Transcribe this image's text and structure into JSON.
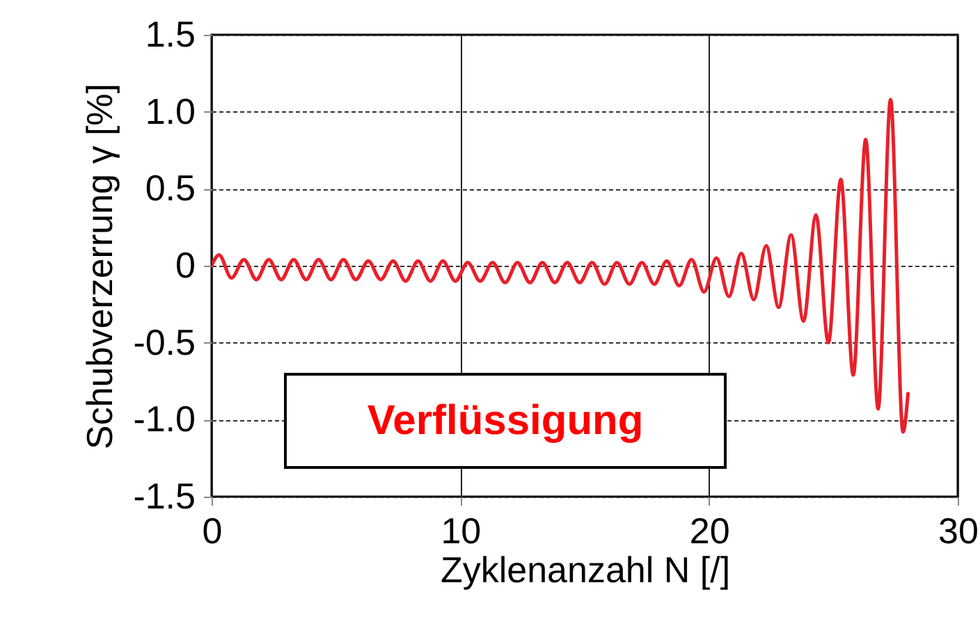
{
  "chart_data": {
    "type": "line",
    "xlabel": "Zyklenanzahl N [/]",
    "ylabel": "Schubverzerrung γ [%]",
    "annotations": [
      "Verflüssigung"
    ],
    "x": [
      0,
      0.3,
      0.8,
      1.3,
      1.8,
      2.3,
      2.8,
      3.3,
      3.8,
      4.3,
      4.8,
      5.3,
      5.8,
      6.3,
      6.8,
      7.3,
      7.8,
      8.3,
      8.8,
      9.3,
      9.8,
      10.3,
      10.8,
      11.3,
      11.8,
      12.3,
      12.8,
      13.3,
      13.8,
      14.3,
      14.8,
      15.3,
      15.8,
      16.3,
      16.8,
      17.3,
      17.8,
      18.3,
      18.8,
      19.3,
      19.8,
      20.3,
      20.8,
      21.3,
      21.8,
      22.3,
      22.8,
      23.3,
      23.8,
      24.3,
      24.8,
      25.3,
      25.8,
      26.3,
      26.8,
      27.3,
      27.8,
      28.0
    ],
    "series": [
      {
        "color": "#e8202a",
        "values": [
          0,
          0.07,
          -0.08,
          0.04,
          -0.09,
          0.04,
          -0.09,
          0.04,
          -0.09,
          0.04,
          -0.09,
          0.04,
          -0.09,
          0.03,
          -0.09,
          0.03,
          -0.1,
          0.03,
          -0.1,
          0.03,
          -0.1,
          0.02,
          -0.1,
          0.02,
          -0.11,
          0.02,
          -0.11,
          0.02,
          -0.11,
          0.02,
          -0.11,
          0.02,
          -0.12,
          0.02,
          -0.12,
          0.02,
          -0.12,
          0.03,
          -0.13,
          0.04,
          -0.17,
          0.05,
          -0.2,
          0.08,
          -0.22,
          0.13,
          -0.27,
          0.2,
          -0.36,
          0.33,
          -0.5,
          0.56,
          -0.71,
          0.82,
          -0.93,
          1.08,
          -1.08,
          -0.83
        ]
      }
    ],
    "xlim": [
      0,
      30
    ],
    "xticks": [
      0,
      10,
      20,
      30
    ],
    "ylim": [
      -1.5,
      1.5
    ],
    "yticks": [
      {
        "value": -1.5,
        "label": "-1.5"
      },
      {
        "value": -1,
        "label": "-1.0"
      },
      {
        "value": -0.5,
        "label": "-0.5"
      },
      0,
      {
        "value": 0.5,
        "label": "0.5"
      },
      {
        "value": 1,
        "label": "1.0"
      },
      {
        "value": 1.5,
        "label": "1.5"
      }
    ],
    "grid": true,
    "legend": false,
    "marker": "none",
    "line_style": "solid"
  }
}
